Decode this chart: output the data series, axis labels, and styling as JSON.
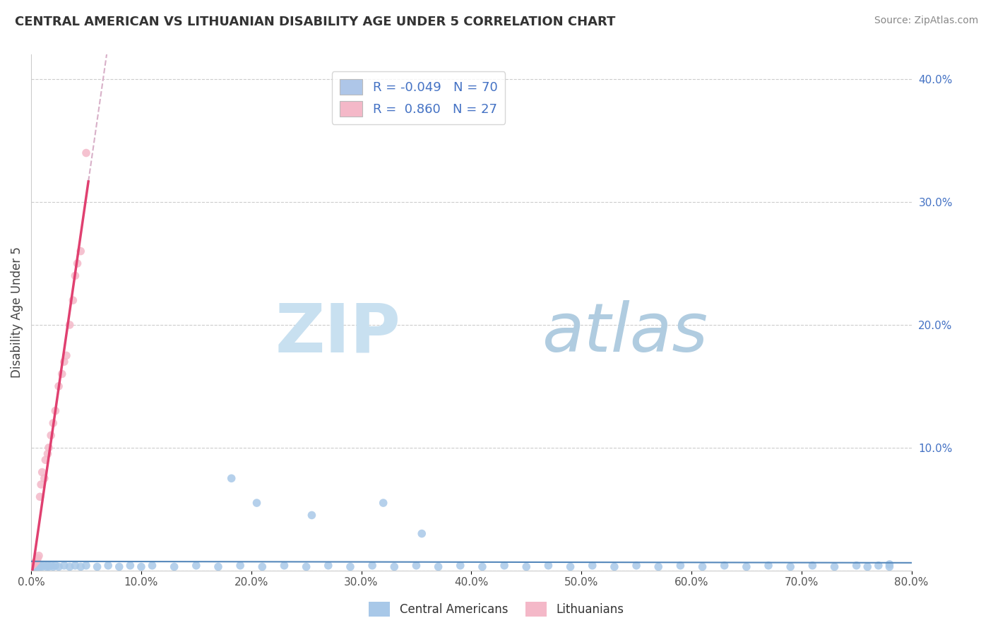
{
  "title": "CENTRAL AMERICAN VS LITHUANIAN DISABILITY AGE UNDER 5 CORRELATION CHART",
  "source": "Source: ZipAtlas.com",
  "ylabel": "Disability Age Under 5",
  "xlim": [
    0.0,
    0.8
  ],
  "ylim": [
    0.0,
    0.42
  ],
  "xticks": [
    0.0,
    0.1,
    0.2,
    0.3,
    0.4,
    0.5,
    0.6,
    0.7,
    0.8
  ],
  "xticklabels": [
    "0.0%",
    "10.0%",
    "20.0%",
    "30.0%",
    "40.0%",
    "50.0%",
    "60.0%",
    "70.0%",
    "80.0%"
  ],
  "yticks": [
    0.0,
    0.1,
    0.2,
    0.3,
    0.4
  ],
  "yticklabels_right": [
    "",
    "10.0%",
    "20.0%",
    "30.0%",
    "40.0%"
  ],
  "legend_r1": "R = -0.049",
  "legend_n1": "N = 70",
  "legend_r2": "R =  0.860",
  "legend_n2": "N = 27",
  "legend_color1": "#aec6e8",
  "legend_color2": "#f4b8c8",
  "blue_scatter_color": "#a8c8e8",
  "pink_scatter_color": "#f4b8c8",
  "blue_trend_color": "#5588bb",
  "pink_trend_color": "#e04070",
  "pink_dashed_color": "#d8b0c8",
  "blue_points_x": [
    0.001,
    0.002,
    0.003,
    0.004,
    0.005,
    0.006,
    0.007,
    0.008,
    0.009,
    0.01,
    0.012,
    0.014,
    0.015,
    0.016,
    0.018,
    0.02,
    0.022,
    0.025,
    0.03,
    0.035,
    0.04,
    0.045,
    0.05,
    0.06,
    0.07,
    0.08,
    0.09,
    0.1,
    0.11,
    0.13,
    0.15,
    0.17,
    0.19,
    0.21,
    0.23,
    0.25,
    0.27,
    0.29,
    0.31,
    0.33,
    0.35,
    0.37,
    0.39,
    0.41,
    0.43,
    0.45,
    0.47,
    0.49,
    0.51,
    0.53,
    0.55,
    0.57,
    0.59,
    0.61,
    0.63,
    0.65,
    0.67,
    0.69,
    0.71,
    0.73,
    0.75,
    0.76,
    0.77,
    0.78,
    0.182,
    0.205,
    0.255,
    0.32,
    0.355,
    0.78
  ],
  "blue_points_y": [
    0.004,
    0.003,
    0.005,
    0.003,
    0.004,
    0.003,
    0.004,
    0.003,
    0.004,
    0.003,
    0.004,
    0.003,
    0.004,
    0.003,
    0.004,
    0.003,
    0.004,
    0.003,
    0.004,
    0.003,
    0.004,
    0.003,
    0.004,
    0.003,
    0.004,
    0.003,
    0.004,
    0.003,
    0.004,
    0.003,
    0.004,
    0.003,
    0.004,
    0.003,
    0.004,
    0.003,
    0.004,
    0.003,
    0.004,
    0.003,
    0.004,
    0.003,
    0.004,
    0.003,
    0.004,
    0.003,
    0.004,
    0.003,
    0.004,
    0.003,
    0.004,
    0.003,
    0.004,
    0.003,
    0.004,
    0.003,
    0.004,
    0.003,
    0.004,
    0.003,
    0.004,
    0.003,
    0.004,
    0.003,
    0.075,
    0.055,
    0.045,
    0.055,
    0.03,
    0.005
  ],
  "pink_points_x": [
    0.001,
    0.002,
    0.003,
    0.004,
    0.005,
    0.006,
    0.007,
    0.008,
    0.009,
    0.01,
    0.012,
    0.013,
    0.015,
    0.016,
    0.018,
    0.02,
    0.022,
    0.025,
    0.028,
    0.03,
    0.032,
    0.035,
    0.038,
    0.04,
    0.042,
    0.045,
    0.05
  ],
  "pink_points_y": [
    0.004,
    0.005,
    0.006,
    0.007,
    0.008,
    0.01,
    0.012,
    0.06,
    0.07,
    0.08,
    0.075,
    0.09,
    0.095,
    0.1,
    0.11,
    0.12,
    0.13,
    0.15,
    0.16,
    0.17,
    0.175,
    0.2,
    0.22,
    0.24,
    0.25,
    0.26,
    0.34
  ]
}
